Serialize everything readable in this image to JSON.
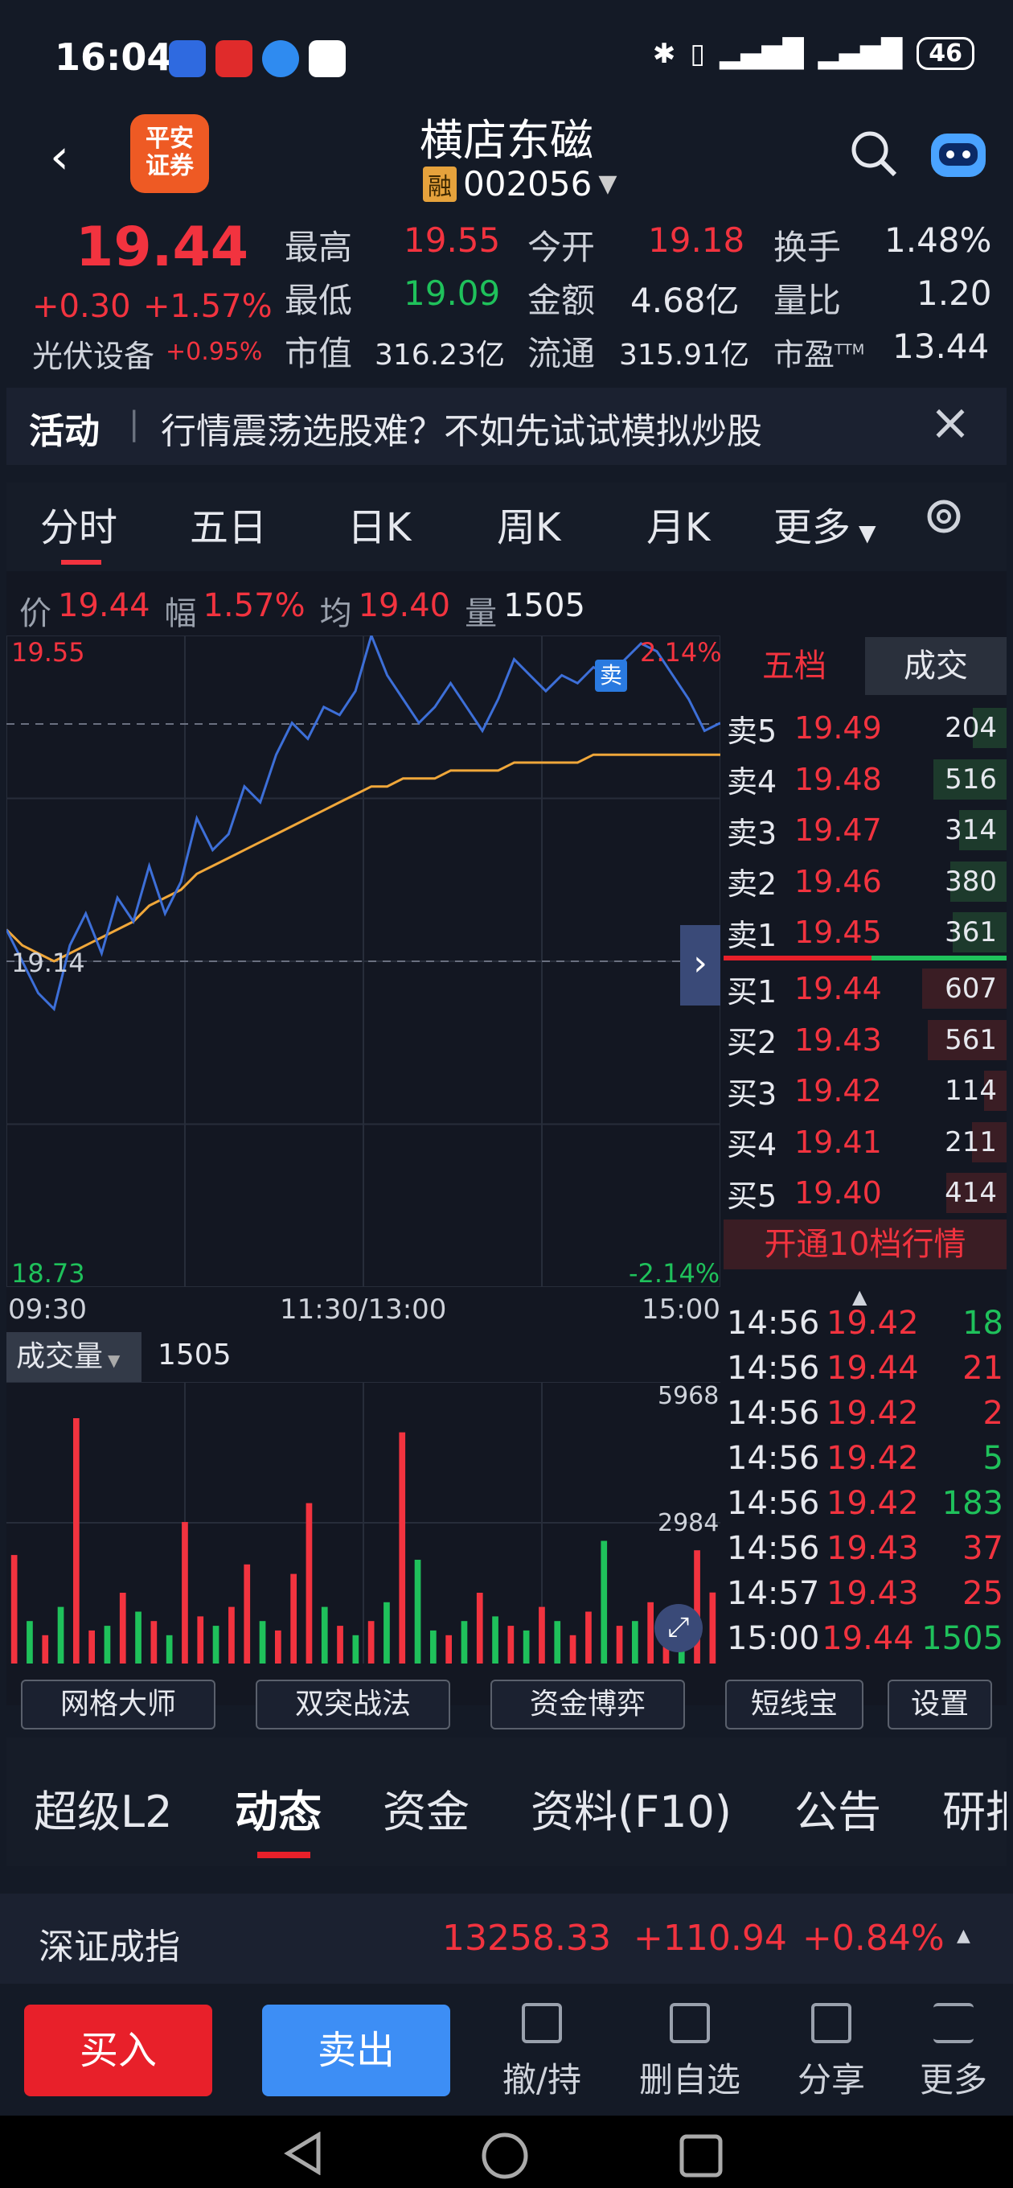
{
  "status": {
    "time": "16:04",
    "battery": "46"
  },
  "header": {
    "logo_line1": "平安",
    "logo_line2": "证券",
    "title": "横店东磁",
    "margin_tag": "融",
    "code": "002056"
  },
  "quote": {
    "price": "19.44",
    "change": "+0.30",
    "change_pct": "+1.57%",
    "sector": "光伏设备",
    "sector_pct": "+0.95%",
    "high_label": "最高",
    "high": "19.55",
    "open_label": "今开",
    "open": "19.18",
    "turnover_label": "换手",
    "turnover": "1.48%",
    "low_label": "最低",
    "low": "19.09",
    "amount_label": "金额",
    "amount": "4.68亿",
    "vol_ratio_label": "量比",
    "vol_ratio": "1.20",
    "mktcap_label": "市值",
    "mktcap": "316.23亿",
    "float_label": "流通",
    "float": "315.91亿",
    "pe_label": "市盈",
    "pe_sup": "TTM",
    "pe": "13.44"
  },
  "activity": {
    "label": "活动",
    "text": "行情震荡选股难？不如先试试模拟炒股",
    "close": "×"
  },
  "tabs": [
    "分时",
    "五日",
    "日K",
    "周K",
    "月K",
    "更多"
  ],
  "info": {
    "price_label": "价",
    "price": "19.44",
    "amp_label": "幅",
    "amp": "1.57%",
    "avg_label": "均",
    "avg": "19.40",
    "vol_label": "量",
    "vol": "1505"
  },
  "axis": {
    "top": "19.55",
    "top_pct": "2.14%",
    "mid": "19.14",
    "bottom": "18.73",
    "bottom_pct": "-2.14%",
    "t_open": "09:30",
    "t_mid": "11:30/13:00",
    "t_close": "15:00",
    "sell_marker": "卖"
  },
  "book": {
    "tab_book": "五档",
    "tab_trades": "成交",
    "asks": [
      {
        "label": "卖5",
        "price": "19.49",
        "vol": "204"
      },
      {
        "label": "卖4",
        "price": "19.48",
        "vol": "516"
      },
      {
        "label": "卖3",
        "price": "19.47",
        "vol": "314"
      },
      {
        "label": "卖2",
        "price": "19.46",
        "vol": "380"
      },
      {
        "label": "卖1",
        "price": "19.45",
        "vol": "361"
      }
    ],
    "bids": [
      {
        "label": "买1",
        "price": "19.44",
        "vol": "607"
      },
      {
        "label": "买2",
        "price": "19.43",
        "vol": "561"
      },
      {
        "label": "买3",
        "price": "19.42",
        "vol": "114"
      },
      {
        "label": "买4",
        "price": "19.41",
        "vol": "211"
      },
      {
        "label": "买5",
        "price": "19.40",
        "vol": "414"
      }
    ],
    "upgrade": "开通10档行情"
  },
  "ticks": [
    {
      "time": "14:56",
      "price": "19.42",
      "vol": "18",
      "dir": "buy"
    },
    {
      "time": "14:56",
      "price": "19.44",
      "vol": "21",
      "dir": "sell"
    },
    {
      "time": "14:56",
      "price": "19.42",
      "vol": "2",
      "dir": "sell"
    },
    {
      "time": "14:56",
      "price": "19.42",
      "vol": "5",
      "dir": "buy"
    },
    {
      "time": "14:56",
      "price": "19.42",
      "vol": "183",
      "dir": "buy"
    },
    {
      "time": "14:56",
      "price": "19.43",
      "vol": "37",
      "dir": "sell"
    },
    {
      "time": "14:57",
      "price": "19.43",
      "vol": "25",
      "dir": "sell"
    },
    {
      "time": "15:00",
      "price": "19.44",
      "vol": "1505",
      "dir": "buy"
    }
  ],
  "volume": {
    "label": "成交量",
    "value": "1505",
    "top": "5968",
    "mid": "2984"
  },
  "tools": [
    "网格大师",
    "双突战法",
    "资金博弈",
    "短线宝",
    "设置"
  ],
  "lower_tabs": [
    "超级L2",
    "动态",
    "资金",
    "资料(F10)",
    "公告",
    "研报"
  ],
  "index": {
    "name": "深证成指",
    "value": "13258.33",
    "change": "+110.94",
    "pct": "+0.84%"
  },
  "actions": {
    "buy": "买入",
    "sell": "卖出",
    "items": [
      "撤/持",
      "删自选",
      "分享",
      "更多"
    ]
  },
  "colors": {
    "up": "#f2333f",
    "down": "#1fc15b",
    "price_line": "#3d6fd8",
    "avg_line": "#f0a73a"
  },
  "chart_data": {
    "type": "line",
    "title": "",
    "xlabel": "",
    "ylabel": "",
    "ylim": [
      18.73,
      19.55
    ],
    "x_ticks": [
      "09:30",
      "11:30/13:00",
      "15:00"
    ],
    "series": [
      {
        "values": [
          19.18,
          19.14,
          19.1,
          19.08,
          19.16,
          19.2,
          19.15,
          19.22,
          19.19,
          19.26,
          19.2,
          19.24,
          19.32,
          19.28,
          19.3,
          19.36,
          19.34,
          19.4,
          19.44,
          19.42,
          19.46,
          19.45,
          19.48,
          19.55,
          19.5,
          19.47,
          19.44,
          19.46,
          19.49,
          19.46,
          19.43,
          19.47,
          19.52,
          19.5,
          19.48,
          19.5,
          19.49,
          19.51,
          19.5,
          19.52,
          19.54,
          19.53,
          19.5,
          19.47,
          19.43,
          19.44
        ]
      },
      {
        "values": [
          19.18,
          19.16,
          19.15,
          19.14,
          19.15,
          19.16,
          19.17,
          19.18,
          19.19,
          19.21,
          19.22,
          19.23,
          19.25,
          19.26,
          19.27,
          19.28,
          19.29,
          19.3,
          19.31,
          19.32,
          19.33,
          19.34,
          19.35,
          19.36,
          19.36,
          19.37,
          19.37,
          19.37,
          19.38,
          19.38,
          19.38,
          19.38,
          19.39,
          19.39,
          19.39,
          19.39,
          19.39,
          19.4,
          19.4,
          19.4,
          19.4,
          19.4,
          19.4,
          19.4,
          19.4,
          19.4
        ]
      }
    ],
    "volume_ylim": [
      0,
      5968
    ],
    "volume_bars": [
      2300,
      900,
      600,
      1200,
      5200,
      700,
      800,
      1500,
      1100,
      900,
      600,
      3000,
      1000,
      800,
      1200,
      2100,
      900,
      700,
      1900,
      3400,
      1200,
      800,
      600,
      900,
      1300,
      4900,
      2200,
      700,
      600,
      900,
      1500,
      1000,
      800,
      700,
      1200,
      900,
      600,
      1100,
      2600,
      800,
      900,
      1300,
      700,
      1000,
      2400,
      1505
    ],
    "volume_dir": [
      "up",
      "dn",
      "up",
      "dn",
      "up",
      "up",
      "dn",
      "up",
      "dn",
      "up",
      "dn",
      "up",
      "up",
      "dn",
      "up",
      "up",
      "dn",
      "up",
      "up",
      "up",
      "dn",
      "up",
      "dn",
      "up",
      "dn",
      "up",
      "dn",
      "dn",
      "up",
      "dn",
      "up",
      "dn",
      "up",
      "dn",
      "up",
      "dn",
      "up",
      "up",
      "dn",
      "up",
      "dn",
      "up",
      "up",
      "dn",
      "up",
      "up"
    ]
  }
}
